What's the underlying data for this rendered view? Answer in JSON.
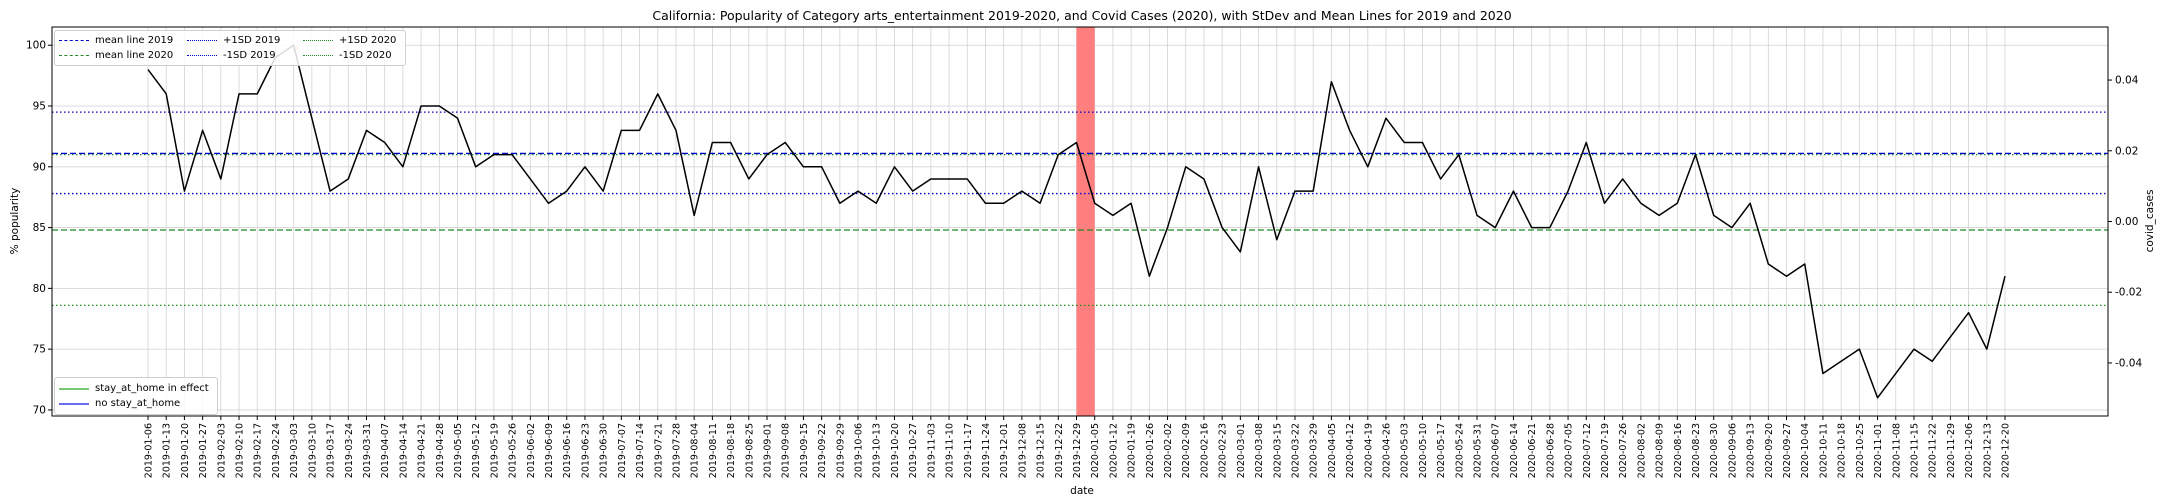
{
  "chart_data": {
    "type": "line",
    "title": "California: Popularity of Category arts_entertainment 2019-2020, and Covid Cases (2020), with StDev and Mean Lines for 2019 and 2020",
    "xlabel": "date",
    "ylabel": "% popularity",
    "ylabel_right": "covid_cases",
    "ylim": [
      69.5,
      101.5
    ],
    "yticks": [
      "70",
      "75",
      "80",
      "85",
      "90",
      "95",
      "100"
    ],
    "ylim_right": [
      -0.055,
      0.055
    ],
    "yticks_right": [
      "-0.04",
      "-0.02",
      "0.00",
      "0.02",
      "0.04"
    ],
    "grid": true,
    "x": [
      "2019-01-06",
      "2019-01-13",
      "2019-01-20",
      "2019-01-27",
      "2019-02-03",
      "2019-02-10",
      "2019-02-17",
      "2019-02-24",
      "2019-03-03",
      "2019-03-10",
      "2019-03-17",
      "2019-03-24",
      "2019-03-31",
      "2019-04-07",
      "2019-04-14",
      "2019-04-21",
      "2019-04-28",
      "2019-05-05",
      "2019-05-12",
      "2019-05-19",
      "2019-05-26",
      "2019-06-02",
      "2019-06-09",
      "2019-06-16",
      "2019-06-23",
      "2019-06-30",
      "2019-07-07",
      "2019-07-14",
      "2019-07-21",
      "2019-07-28",
      "2019-08-04",
      "2019-08-11",
      "2019-08-18",
      "2019-08-25",
      "2019-09-01",
      "2019-09-08",
      "2019-09-15",
      "2019-09-22",
      "2019-09-29",
      "2019-10-06",
      "2019-10-13",
      "2019-10-20",
      "2019-10-27",
      "2019-11-03",
      "2019-11-10",
      "2019-11-17",
      "2019-11-24",
      "2019-12-01",
      "2019-12-08",
      "2019-12-15",
      "2019-12-22",
      "2019-12-29",
      "2020-01-05",
      "2020-01-12",
      "2020-01-19",
      "2020-01-26",
      "2020-02-02",
      "2020-02-09",
      "2020-02-16",
      "2020-02-23",
      "2020-03-01",
      "2020-03-08",
      "2020-03-15",
      "2020-03-22",
      "2020-03-29",
      "2020-04-05",
      "2020-04-12",
      "2020-04-19",
      "2020-04-26",
      "2020-05-03",
      "2020-05-10",
      "2020-05-17",
      "2020-05-24",
      "2020-05-31",
      "2020-06-07",
      "2020-06-14",
      "2020-06-21",
      "2020-06-28",
      "2020-07-05",
      "2020-07-12",
      "2020-07-19",
      "2020-07-26",
      "2020-08-02",
      "2020-08-09",
      "2020-08-16",
      "2020-08-23",
      "2020-08-30",
      "2020-09-06",
      "2020-09-13",
      "2020-09-20",
      "2020-09-27",
      "2020-10-04",
      "2020-10-11",
      "2020-10-18",
      "2020-10-25",
      "2020-11-01",
      "2020-11-08",
      "2020-11-15",
      "2020-11-22",
      "2020-11-29",
      "2020-12-06",
      "2020-12-13",
      "2020-12-20"
    ],
    "series": [
      {
        "name": "",
        "color": "#000000",
        "values": [
          98,
          96,
          88,
          93,
          89,
          96,
          96,
          99,
          100,
          94,
          88,
          89,
          93,
          92,
          90,
          95,
          95,
          94,
          90,
          91,
          91,
          89,
          87,
          88,
          90,
          88,
          93,
          93,
          96,
          93,
          86,
          92,
          92,
          89,
          91,
          92,
          90,
          90,
          87,
          88,
          87,
          90,
          88,
          89,
          89,
          89,
          87,
          87,
          88,
          87,
          91,
          92,
          87,
          86,
          87,
          81,
          85,
          90,
          89,
          85,
          83,
          90,
          84,
          88,
          88,
          97,
          93,
          90,
          94,
          92,
          92,
          89,
          91,
          86,
          85,
          88,
          85,
          85,
          88,
          92,
          87,
          89,
          87,
          86,
          87,
          91,
          86,
          85,
          87,
          82,
          81,
          82,
          73,
          74,
          75,
          71,
          73,
          75,
          74,
          76,
          78,
          75,
          81
        ]
      }
    ],
    "reference_lines": [
      {
        "name": "mean line 2019",
        "y": 91.1,
        "color": "#0000cc",
        "style": "dashed"
      },
      {
        "name": "+1SD 2019",
        "y": 94.5,
        "color": "#0000cc",
        "style": "dotted"
      },
      {
        "name": "-1SD 2019",
        "y": 87.8,
        "color": "#0000cc",
        "style": "dotted"
      },
      {
        "name": "mean line 2020",
        "y": 84.8,
        "color": "#228b22",
        "style": "dashed"
      },
      {
        "name": "+1SD 2020",
        "y": 91.0,
        "color": "#228b22",
        "style": "dotted"
      },
      {
        "name": "-1SD 2020",
        "y": 78.6,
        "color": "#228b22",
        "style": "dotted"
      }
    ],
    "shaded_region": {
      "from": "2019-12-29",
      "to": "2020-01-05",
      "color": "#ff7f7f"
    },
    "legend_top": {
      "placement": "top-left",
      "entries": [
        {
          "label": "mean line 2019",
          "color": "#0000cc",
          "style": "dashed"
        },
        {
          "label": "+1SD 2019",
          "color": "#0000cc",
          "style": "dotted"
        },
        {
          "label": "+1SD 2020",
          "color": "#228b22",
          "style": "dotted"
        },
        {
          "label": "mean line 2020",
          "color": "#228b22",
          "style": "dashed"
        },
        {
          "label": "-1SD 2019",
          "color": "#0000cc",
          "style": "dotted"
        },
        {
          "label": "-1SD 2020",
          "color": "#228b22",
          "style": "dotted"
        }
      ]
    },
    "legend_bottom": {
      "placement": "lower-left",
      "entries": [
        {
          "label": "stay_at_home in effect",
          "color": "#77c777",
          "style": "solid"
        },
        {
          "label": "no stay_at_home",
          "color": "#6b6bf0",
          "style": "solid"
        }
      ]
    }
  }
}
